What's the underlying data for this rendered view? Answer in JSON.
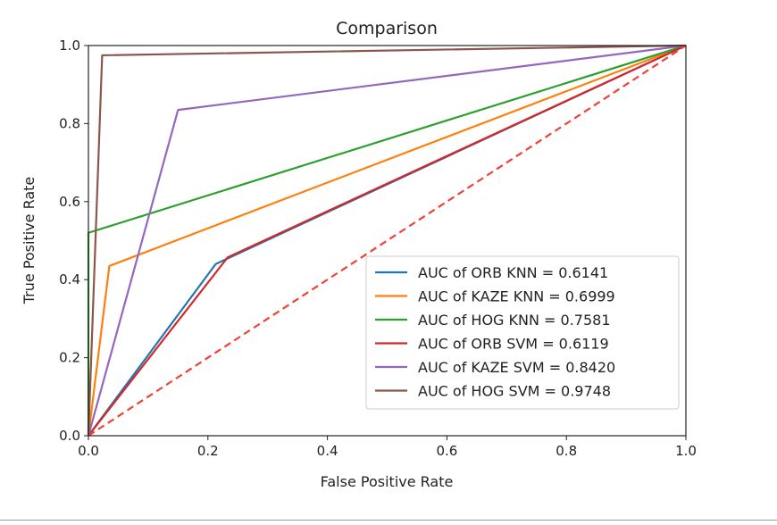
{
  "chart_data": {
    "type": "line",
    "title": "Comparison",
    "xlabel": "False Positive Rate",
    "ylabel": "True Positive Rate",
    "xlim": [
      0.0,
      1.0
    ],
    "ylim": [
      0.0,
      1.0
    ],
    "xticks": [
      "0.0",
      "0.2",
      "0.4",
      "0.6",
      "0.8",
      "1.0"
    ],
    "yticks": [
      "0.0",
      "0.2",
      "0.4",
      "0.6",
      "0.8",
      "1.0"
    ],
    "grid": false,
    "legend_position": "lower-right",
    "series": [
      {
        "name": "AUC of ORB KNN = 0.6141",
        "color": "#1f77b4",
        "style": "solid",
        "points": [
          [
            0.0,
            0.0
          ],
          [
            0.213,
            0.44
          ],
          [
            1.0,
            1.0
          ]
        ]
      },
      {
        "name": "AUC of KAZE KNN = 0.6999",
        "color": "#ff7f0e",
        "style": "solid",
        "points": [
          [
            0.0,
            0.0
          ],
          [
            0.035,
            0.435
          ],
          [
            1.0,
            1.0
          ]
        ]
      },
      {
        "name": "AUC of HOG KNN = 0.7581",
        "color": "#2ca02c",
        "style": "solid",
        "points": [
          [
            0.0,
            0.0
          ],
          [
            0.0,
            0.52
          ],
          [
            1.0,
            1.0
          ]
        ]
      },
      {
        "name": "AUC of ORB SVM = 0.6119",
        "color": "#d62728",
        "style": "solid",
        "points": [
          [
            0.0,
            0.0
          ],
          [
            0.233,
            0.457
          ],
          [
            1.0,
            1.0
          ]
        ]
      },
      {
        "name": "AUC of KAZE SVM = 0.8420",
        "color": "#9467bd",
        "style": "solid",
        "points": [
          [
            0.0,
            0.0
          ],
          [
            0.15,
            0.835
          ],
          [
            1.0,
            1.0
          ]
        ]
      },
      {
        "name": "AUC of HOG SVM = 0.9748",
        "color": "#8c564b",
        "style": "solid",
        "points": [
          [
            0.0,
            0.0
          ],
          [
            0.023,
            0.975
          ],
          [
            1.0,
            1.0
          ]
        ]
      }
    ],
    "reference_line": {
      "color": "#ef4136",
      "style": "dashed",
      "points": [
        [
          0.0,
          0.0
        ],
        [
          1.0,
          1.0
        ]
      ]
    }
  }
}
